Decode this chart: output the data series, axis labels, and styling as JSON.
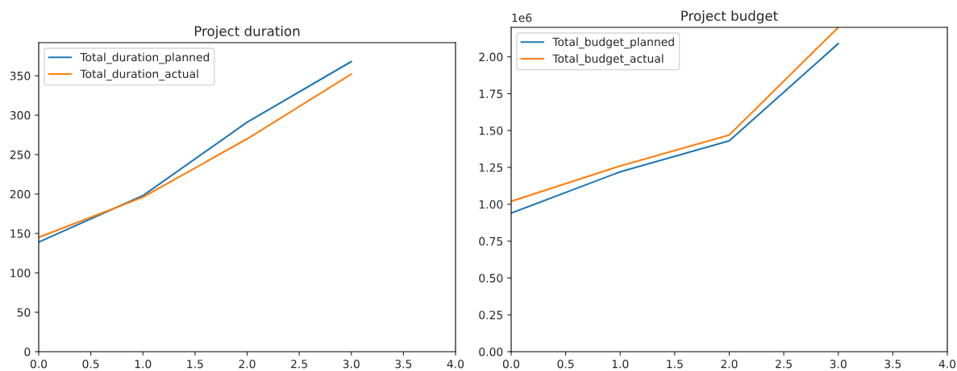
{
  "chart_data": [
    {
      "type": "line",
      "title": "Project duration",
      "x": [
        0,
        1,
        2,
        3
      ],
      "xlim": [
        0,
        4
      ],
      "xticks": [
        {
          "value": 0,
          "label": "0.0"
        },
        {
          "value": 0.5,
          "label": "0.5"
        },
        {
          "value": 1,
          "label": "1.0"
        },
        {
          "value": 1.5,
          "label": "1.5"
        },
        {
          "value": 2,
          "label": "2.0"
        },
        {
          "value": 2.5,
          "label": "2.5"
        },
        {
          "value": 3,
          "label": "3.0"
        },
        {
          "value": 3.5,
          "label": "3.5"
        },
        {
          "value": 4,
          "label": "4.0"
        }
      ],
      "ylim": [
        0,
        392
      ],
      "yticks": [
        0,
        50,
        100,
        150,
        200,
        250,
        300,
        350
      ],
      "legend": "top left",
      "grid": false,
      "series": [
        {
          "name": "Total_duration_planned",
          "color": "#1f77b4",
          "values": [
            139,
            198,
            291,
            368
          ]
        },
        {
          "name": "Total_duration_actual",
          "color": "#ff7f0e",
          "values": [
            145,
            196,
            270,
            352
          ]
        }
      ]
    },
    {
      "type": "line",
      "title": "Project budget",
      "x": [
        0,
        1,
        2,
        3
      ],
      "xlim": [
        0,
        4
      ],
      "xticks": [
        {
          "value": 0,
          "label": "0.0"
        },
        {
          "value": 0.5,
          "label": "0.5"
        },
        {
          "value": 1,
          "label": "1.0"
        },
        {
          "value": 1.5,
          "label": "1.5"
        },
        {
          "value": 2,
          "label": "2.0"
        },
        {
          "value": 2.5,
          "label": "2.5"
        },
        {
          "value": 3,
          "label": "3.0"
        },
        {
          "value": 3.5,
          "label": "3.5"
        },
        {
          "value": 4,
          "label": "4.0"
        }
      ],
      "ylim": [
        0,
        2.2
      ],
      "yticks": [
        {
          "value": 0,
          "label": "0.00"
        },
        0.25,
        {
          "value": 0.5,
          "label": "0.50"
        },
        0.75,
        {
          "value": 1,
          "label": "1.00"
        },
        1.25,
        {
          "value": 1.5,
          "label": "1.50"
        },
        1.75,
        {
          "value": 2,
          "label": "2.00"
        }
      ],
      "annotations": [
        "1e6"
      ],
      "legend": "top left",
      "grid": false,
      "series": [
        {
          "name": "Total_budget_planned",
          "color": "#1f77b4",
          "values": [
            0.94,
            1.22,
            1.43,
            2.09
          ]
        },
        {
          "name": "Total_budget_actual",
          "color": "#ff7f0e",
          "values": [
            1.02,
            1.26,
            1.47,
            2.2
          ]
        }
      ]
    }
  ]
}
